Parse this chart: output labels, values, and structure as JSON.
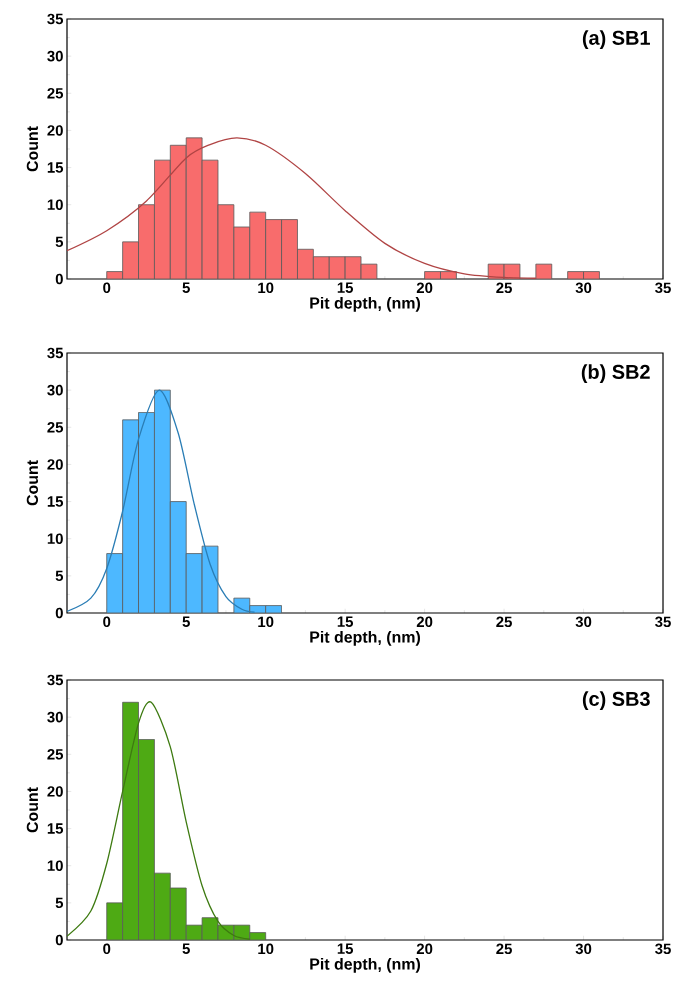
{
  "chart_data": [
    {
      "type": "histogram",
      "annotations": [
        "(a) SB1"
      ],
      "xlabel": "Pit depth, (nm)",
      "ylabel": "Count",
      "xlim": [
        -2.5,
        35
      ],
      "ylim": [
        0,
        35
      ],
      "xticks": [
        0,
        5,
        10,
        15,
        20,
        25,
        30,
        35
      ],
      "yticks": [
        0,
        5,
        10,
        15,
        20,
        25,
        30,
        35
      ],
      "series": [
        {
          "color": "#f86c6c",
          "bins": [
            0,
            1,
            2,
            3,
            4,
            5,
            6,
            7,
            8,
            9,
            10,
            11,
            12,
            13,
            14,
            15,
            16,
            17,
            18,
            19,
            20,
            21,
            22,
            23,
            24,
            25,
            26,
            27,
            28,
            29,
            30,
            31
          ],
          "values": [
            1,
            5,
            10,
            16,
            18,
            19,
            16,
            10,
            7,
            9,
            8,
            8,
            4,
            3,
            3,
            3,
            2,
            0,
            0,
            0,
            1,
            1,
            0,
            0,
            2,
            2,
            0,
            2,
            0,
            1,
            1
          ]
        },
        {
          "type": "line",
          "color": "#b04444",
          "x": [
            -2.5,
            0,
            2.5,
            5,
            6.5,
            8.2,
            10,
            12.5,
            15,
            17.5,
            20,
            22.5,
            25,
            27
          ],
          "values": [
            3.8,
            6.5,
            10.5,
            16.3,
            18.1,
            19,
            18,
            14.2,
            9.2,
            4.8,
            2.1,
            0.7,
            0.2,
            0.1
          ]
        }
      ]
    },
    {
      "type": "histogram",
      "annotations": [
        "(b) SB2"
      ],
      "xlabel": "Pit depth, (nm)",
      "ylabel": "Count",
      "xlim": [
        -2.5,
        35
      ],
      "ylim": [
        0,
        35
      ],
      "xticks": [
        0,
        5,
        10,
        15,
        20,
        25,
        30,
        35
      ],
      "yticks": [
        0,
        5,
        10,
        15,
        20,
        25,
        30,
        35
      ],
      "series": [
        {
          "color": "#4db8ff",
          "bins": [
            0,
            1,
            2,
            3,
            4,
            5,
            6,
            7,
            8,
            9,
            10,
            11
          ],
          "values": [
            8,
            26,
            27,
            30,
            15,
            8,
            9,
            0,
            2,
            1,
            1
          ]
        },
        {
          "type": "line",
          "color": "#2a7db5",
          "x": [
            -2.5,
            -1,
            0,
            1,
            2,
            3.3,
            4.5,
            5.5,
            6.5,
            7.5,
            8.5,
            9.3
          ],
          "values": [
            0.2,
            2,
            6,
            13.7,
            23.4,
            30,
            24.2,
            14.7,
            6.6,
            2.2,
            0.5,
            0.1
          ]
        }
      ]
    },
    {
      "type": "histogram",
      "annotations": [
        "(c) SB3"
      ],
      "xlabel": "Pit depth, (nm)",
      "ylabel": "Count",
      "xlim": [
        -2.5,
        35
      ],
      "ylim": [
        0,
        35
      ],
      "xticks": [
        0,
        5,
        10,
        15,
        20,
        25,
        30,
        35
      ],
      "yticks": [
        0,
        5,
        10,
        15,
        20,
        25,
        30,
        35
      ],
      "series": [
        {
          "color": "#4eaa14",
          "bins": [
            0,
            1,
            2,
            3,
            4,
            5,
            6,
            7,
            8,
            9,
            10
          ],
          "values": [
            5,
            32,
            27,
            9,
            7,
            2,
            3,
            2,
            2,
            1
          ]
        },
        {
          "type": "line",
          "color": "#3d7a10",
          "x": [
            -2.5,
            -1,
            0,
            1,
            2,
            2.8,
            4,
            5,
            6,
            7,
            8,
            9
          ],
          "values": [
            0.5,
            3.9,
            10.3,
            20,
            29.2,
            32,
            26,
            15.9,
            7.3,
            2.5,
            0.6,
            0.1
          ]
        }
      ]
    }
  ]
}
